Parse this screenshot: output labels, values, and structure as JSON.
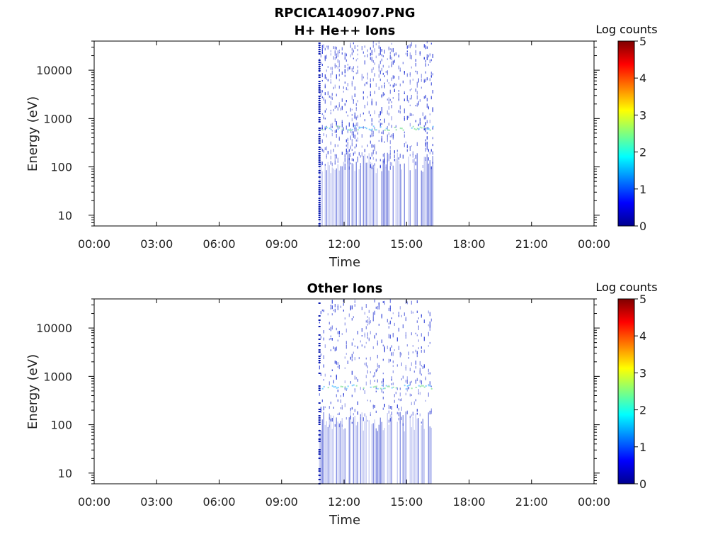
{
  "figure": {
    "title": "RPCICA140907.PNG"
  },
  "chart_data": [
    {
      "type": "heatmap",
      "title": "H+ He++ Ions",
      "xlabel": "Time",
      "ylabel": "Energy (eV)",
      "x_tick_labels": [
        "00:00",
        "03:00",
        "06:00",
        "09:00",
        "12:00",
        "15:00",
        "18:00",
        "21:00",
        "00:00"
      ],
      "x_range_hours": [
        0,
        24
      ],
      "y_scale": "log",
      "y_tick_labels": [
        "10",
        "100",
        "1000",
        "10000"
      ],
      "y_tick_values": [
        10,
        100,
        1000,
        10000
      ],
      "y_range": [
        6,
        40000
      ],
      "data_interval_hours": [
        10.8,
        16.3
      ],
      "band_energy_eV": 650,
      "colorbar": {
        "label": "Log counts",
        "ticks": [
          "0",
          "1",
          "2",
          "3",
          "4",
          "5"
        ],
        "range": [
          0,
          5
        ],
        "colormap": "jet"
      }
    },
    {
      "type": "heatmap",
      "title": "Other Ions",
      "xlabel": "Time",
      "ylabel": "Energy (eV)",
      "x_tick_labels": [
        "00:00",
        "03:00",
        "06:00",
        "09:00",
        "12:00",
        "15:00",
        "18:00",
        "21:00",
        "00:00"
      ],
      "x_range_hours": [
        0,
        24
      ],
      "y_scale": "log",
      "y_tick_labels": [
        "10",
        "100",
        "1000",
        "10000"
      ],
      "y_tick_values": [
        10,
        100,
        1000,
        10000
      ],
      "y_range": [
        6,
        40000
      ],
      "data_interval_hours": [
        10.8,
        16.2
      ],
      "band_energy_eV": 620,
      "colorbar": {
        "label": "Log counts",
        "ticks": [
          "0",
          "1",
          "2",
          "3",
          "4",
          "5"
        ],
        "range": [
          0,
          5
        ],
        "colormap": "jet"
      }
    }
  ]
}
